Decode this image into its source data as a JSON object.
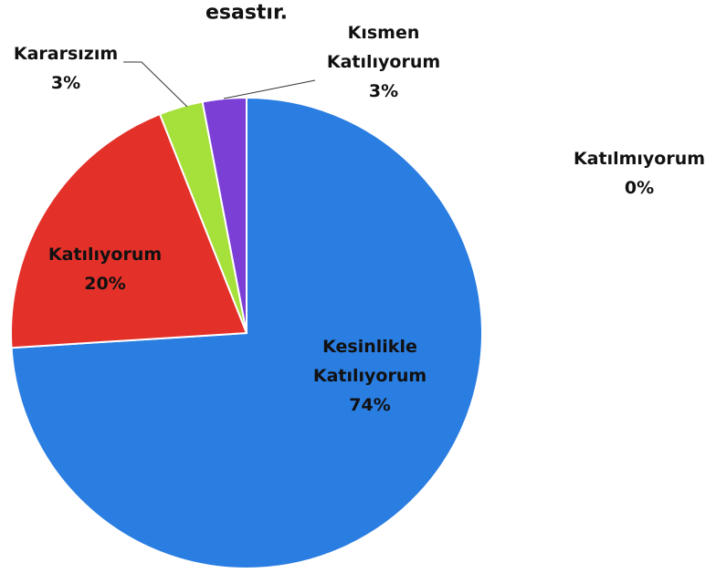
{
  "chart_data": {
    "type": "pie",
    "title": "esastır.",
    "categories": [
      "Kesinlikle Katılıyorum",
      "Katılıyorum",
      "Kararsızım",
      "Kısmen Katılıyorum",
      "Katılmıyorum"
    ],
    "values": [
      74,
      20,
      3,
      3,
      0
    ],
    "value_labels": [
      "74%",
      "20%",
      "3%",
      "3%",
      "0%"
    ],
    "colors": [
      "#2a7de1",
      "#e3312a",
      "#a6e03a",
      "#7b3fd6",
      "#f5a623"
    ]
  }
}
